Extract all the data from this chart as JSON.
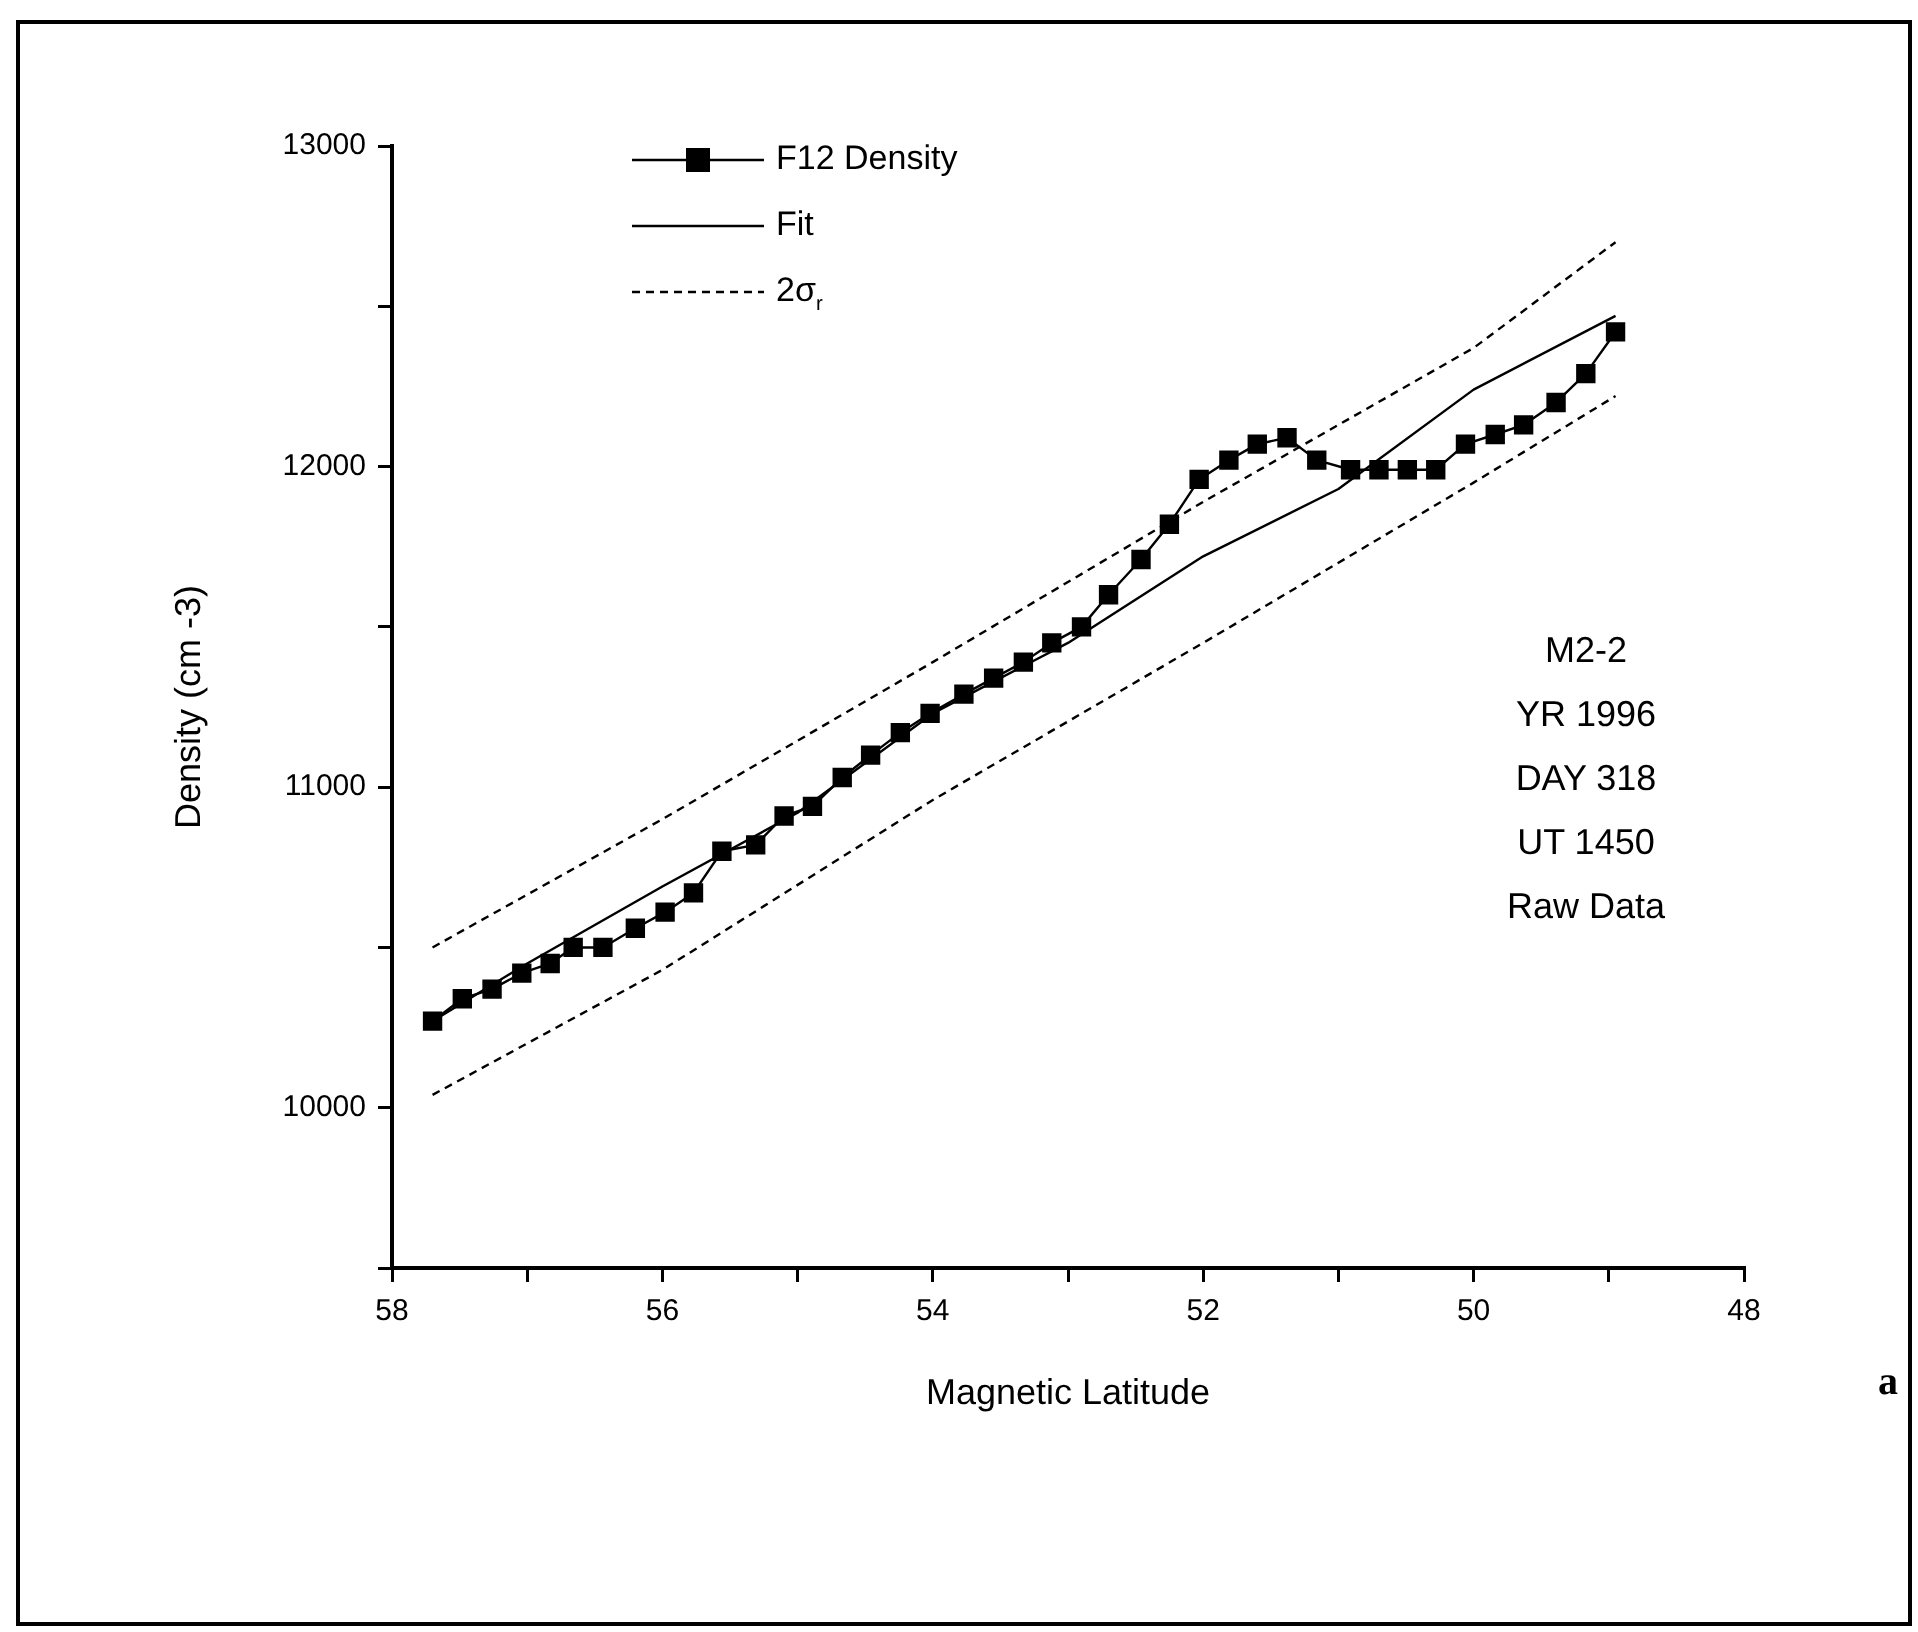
{
  "chart_data": {
    "type": "line",
    "xlabel": "Magnetic Latitude",
    "ylabel": "Density (cm -3)",
    "xlim": [
      58,
      48
    ],
    "xticks": [
      58,
      {
        "value": 57,
        "label": null
      },
      56,
      {
        "value": 55,
        "label": null
      },
      54,
      {
        "value": 53,
        "label": null
      },
      52,
      {
        "value": 51,
        "label": null
      },
      50,
      {
        "value": 49,
        "label": null
      },
      48
    ],
    "ylim": [
      9500,
      13000
    ],
    "yticks": [
      {
        "value": 9500,
        "label": null
      },
      10000,
      {
        "value": 10500,
        "label": null
      },
      11000,
      {
        "value": 11500,
        "label": null
      },
      12000,
      {
        "value": 12500,
        "label": null
      },
      13000
    ],
    "grid": false,
    "legend": "top left",
    "series": [
      {
        "name": "F12 Density",
        "color": "#000000",
        "marker": "square",
        "line_style": "solid",
        "x": [
          57.7,
          57.48,
          57.26,
          57.04,
          56.83,
          56.66,
          56.44,
          56.2,
          55.98,
          55.77,
          55.56,
          55.31,
          55.1,
          54.89,
          54.67,
          54.46,
          54.24,
          54.02,
          53.77,
          53.55,
          53.33,
          53.12,
          52.9,
          52.7,
          52.46,
          52.25,
          52.03,
          51.81,
          51.6,
          51.38,
          51.16,
          50.91,
          50.7,
          50.49,
          50.28,
          50.06,
          49.84,
          49.63,
          49.39,
          49.17,
          48.95
        ],
        "values": [
          10270,
          10340,
          10370,
          10420,
          10450,
          10500,
          10500,
          10560,
          10610,
          10670,
          10800,
          10820,
          10910,
          10940,
          11030,
          11100,
          11170,
          11230,
          11290,
          11340,
          11390,
          11450,
          11500,
          11600,
          11710,
          11820,
          11960,
          12020,
          12070,
          12090,
          12020,
          11990,
          11990,
          11990,
          11990,
          12070,
          12100,
          12130,
          12200,
          12290,
          12420
        ]
      },
      {
        "name": "Fit",
        "color": "#000000",
        "marker": "none",
        "line_style": "solid",
        "x": [
          57.7,
          57.0,
          56.0,
          55.0,
          54.0,
          53.0,
          52.0,
          51.0,
          50.0,
          48.95
        ],
        "values": [
          10270,
          10450,
          10690,
          10920,
          11230,
          11450,
          11720,
          11930,
          12240,
          12470
        ]
      },
      {
        "name": "2σ$_{r}$",
        "color": "#000000",
        "marker": "none",
        "line_style": "dashed",
        "x": [
          57.7,
          56.0,
          54.0,
          52.0,
          50.0,
          48.95
        ],
        "values": [
          10500,
          10900,
          11390,
          11890,
          12370,
          12700
        ]
      },
      {
        "color": "#000000",
        "marker": "none",
        "line_style": "dashed",
        "x": [
          57.7,
          56.0,
          54.0,
          52.0,
          50.0,
          48.95
        ],
        "values": [
          10040,
          10430,
          10960,
          11450,
          11950,
          12220
        ]
      }
    ],
    "annotations": [
      "M2-2",
      "YR 1996",
      "DAY 318",
      "UT 1450",
      "Raw Data",
      "a"
    ]
  }
}
